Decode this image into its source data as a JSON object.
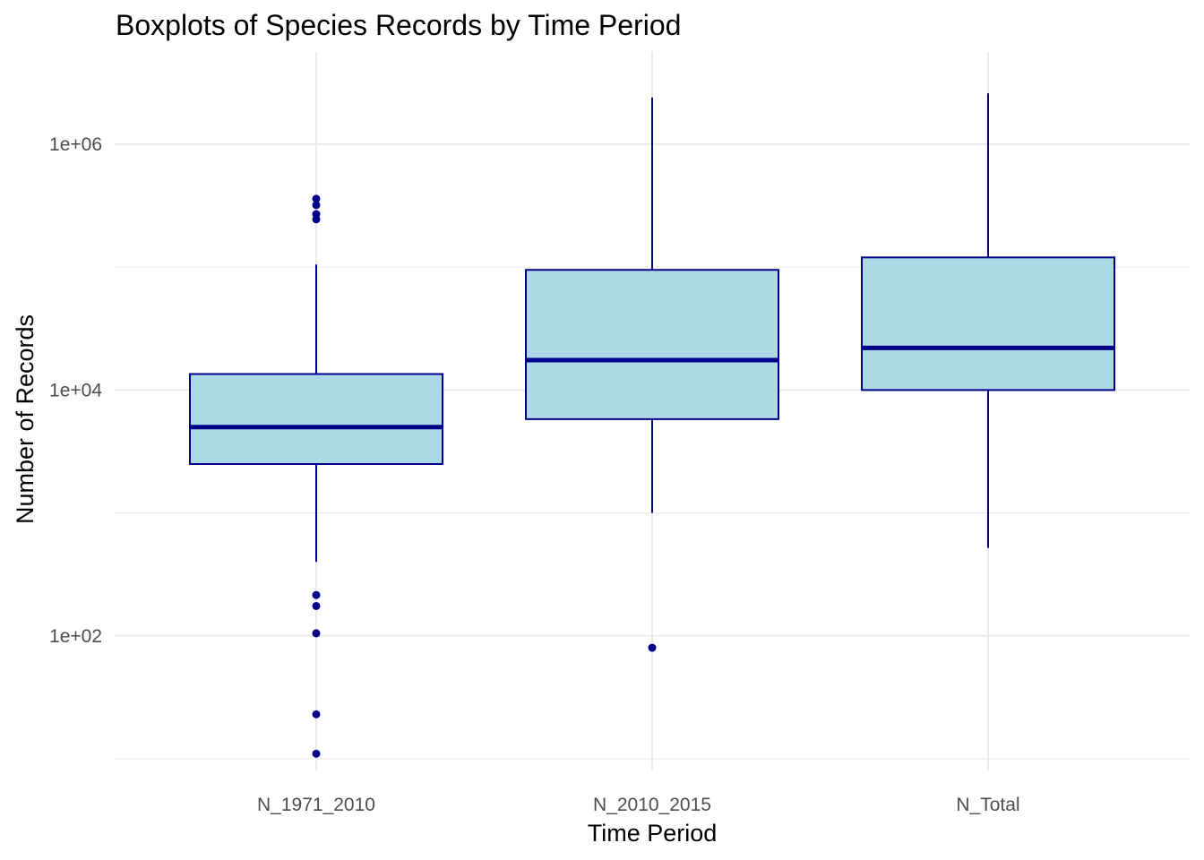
{
  "chart_data": {
    "type": "boxplot",
    "title": "Boxplots of Species Records by Time Period",
    "xlabel": "Time Period",
    "ylabel": "Number of Records",
    "y_scale": "log10",
    "ylim": [
      1.0,
      6.0
    ],
    "y_ticks": [
      {
        "value": 100,
        "label": "1e+02"
      },
      {
        "value": 10000,
        "label": "1e+04"
      },
      {
        "value": 1000000,
        "label": "1e+06"
      }
    ],
    "y_minor_ticks": [
      10,
      1000,
      100000
    ],
    "grid": true,
    "colors": {
      "fill": "#add8e6",
      "stroke": "#00008b",
      "grid": "#ebebeb"
    },
    "categories": [
      "N_1971_2010",
      "N_2010_2015",
      "N_Total"
    ],
    "boxes": [
      {
        "category": "N_1971_2010",
        "whisker_low": 400,
        "q1": 2500,
        "median": 5000,
        "q3": 13500,
        "whisker_high": 105000,
        "outliers": [
          11,
          23,
          105,
          175,
          215,
          245000,
          270000,
          320000,
          360000
        ]
      },
      {
        "category": "N_2010_2015",
        "whisker_low": 1000,
        "q1": 5800,
        "median": 17500,
        "q3": 95000,
        "whisker_high": 2400000,
        "outliers": [
          80
        ]
      },
      {
        "category": "N_Total",
        "whisker_low": 520,
        "q1": 10000,
        "median": 22000,
        "q3": 120000,
        "whisker_high": 2600000,
        "outliers": []
      }
    ]
  }
}
